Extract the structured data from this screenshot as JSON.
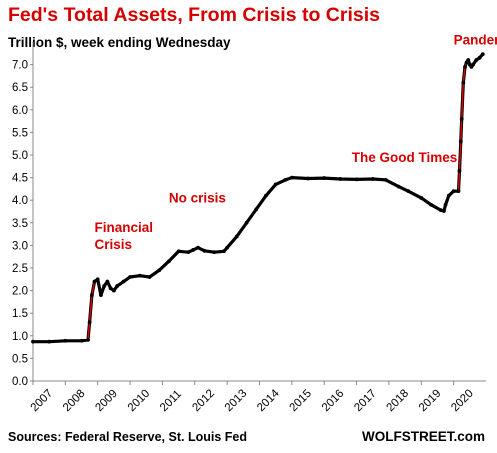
{
  "title": "Fed's Total Assets, From Crisis to Crisis",
  "subtitle": "Trillion $, week ending Wednesday",
  "source": "Sources: Federal Reserve, St. Louis Fed",
  "brand": "WOLFSTREET.com",
  "colors": {
    "title": "#d50000",
    "line": "#000000",
    "highlight": "#e00000",
    "annotation": "#d50000"
  },
  "chart_data": {
    "type": "line",
    "title": "Fed's Total Assets, From Crisis to Crisis",
    "subtitle": "Trillion $, week ending Wednesday",
    "xlabel": "",
    "ylabel": "",
    "ylim": [
      0,
      7.5
    ],
    "xlim": [
      2007,
      2021
    ],
    "grid": false,
    "yticks": [
      "0.0",
      "0.5",
      "1.0",
      "1.5",
      "2.0",
      "2.5",
      "3.0",
      "3.5",
      "4.0",
      "4.5",
      "5.0",
      "5.5",
      "6.0",
      "6.5",
      "7.0"
    ],
    "xticks": [
      "2007",
      "2008",
      "2009",
      "2010",
      "2011",
      "2012",
      "2013",
      "2014",
      "2015",
      "2016",
      "2017",
      "2018",
      "2019",
      "2020"
    ],
    "series": [
      {
        "x": [
          2007.0,
          2007.5,
          2008.0,
          2008.5,
          2008.7,
          2008.75,
          2008.82,
          2008.9,
          2009.0,
          2009.1,
          2009.2,
          2009.3,
          2009.4,
          2009.5,
          2009.6,
          2009.8,
          2010.0,
          2010.3,
          2010.6,
          2010.9,
          2011.2,
          2011.5,
          2011.8,
          2011.95,
          2012.1,
          2012.3,
          2012.6,
          2012.9,
          2013.0,
          2013.3,
          2013.6,
          2013.9,
          2014.2,
          2014.5,
          2014.8,
          2015.0,
          2015.5,
          2016.0,
          2016.5,
          2017.0,
          2017.5,
          2017.9,
          2018.3,
          2018.6,
          2019.0,
          2019.3,
          2019.6,
          2019.7,
          2019.75,
          2019.85,
          2020.0,
          2020.15,
          2020.18,
          2020.22,
          2020.25,
          2020.3,
          2020.35,
          2020.4,
          2020.45,
          2020.5,
          2020.55,
          2020.6,
          2020.7,
          2020.8,
          2020.9
        ],
        "values": [
          0.87,
          0.87,
          0.89,
          0.89,
          0.91,
          1.3,
          1.9,
          2.2,
          2.25,
          1.9,
          2.1,
          2.2,
          2.05,
          2.0,
          2.1,
          2.2,
          2.3,
          2.33,
          2.3,
          2.45,
          2.65,
          2.87,
          2.85,
          2.9,
          2.95,
          2.88,
          2.85,
          2.87,
          2.95,
          3.2,
          3.5,
          3.8,
          4.1,
          4.35,
          4.45,
          4.5,
          4.48,
          4.49,
          4.47,
          4.46,
          4.47,
          4.45,
          4.3,
          4.2,
          4.05,
          3.9,
          3.78,
          3.76,
          3.9,
          4.1,
          4.2,
          4.2,
          4.65,
          5.3,
          5.8,
          6.6,
          6.95,
          7.05,
          7.1,
          7.0,
          6.95,
          7.0,
          7.1,
          7.15,
          7.23
        ]
      }
    ],
    "highlights": [
      {
        "from": 2008.7,
        "to": 2009.0
      },
      {
        "from": 2020.15,
        "to": 2020.45
      }
    ],
    "annotations": [
      {
        "text": "Financial",
        "x": 2008.9,
        "y": 3.3
      },
      {
        "text": "Crisis",
        "x": 2008.9,
        "y": 2.92
      },
      {
        "text": "No crisis",
        "x": 2011.2,
        "y": 3.95
      },
      {
        "text": "The Good Times",
        "x": 2016.85,
        "y": 4.85
      },
      {
        "text": "Pandemic",
        "x": 2020.0,
        "y": 7.45
      }
    ]
  }
}
